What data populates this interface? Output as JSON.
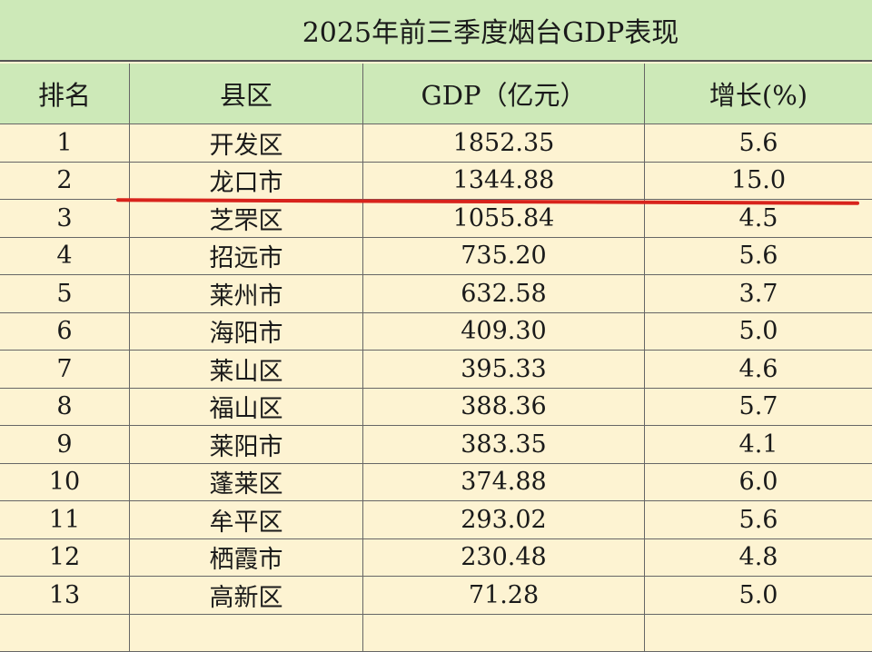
{
  "title": "2025年前三季度烟台GDP表现",
  "columns": [
    "排名",
    "县区",
    "GDP（亿元）",
    "增长(%)"
  ],
  "rows": [
    [
      "1",
      "开发区",
      "1852.35",
      "5.6"
    ],
    [
      "2",
      "龙口市",
      "1344.88",
      "15.0"
    ],
    [
      "3",
      "芝罘区",
      "1055.84",
      "4.5"
    ],
    [
      "4",
      "招远市",
      "735.20",
      "5.6"
    ],
    [
      "5",
      "莱州市",
      "632.58",
      "3.7"
    ],
    [
      "6",
      "海阳市",
      "409.30",
      "5.0"
    ],
    [
      "7",
      "莱山区",
      "395.33",
      "4.6"
    ],
    [
      "8",
      "福山区",
      "388.36",
      "5.7"
    ],
    [
      "9",
      "莱阳市",
      "383.35",
      "4.1"
    ],
    [
      "10",
      "蓬莱区",
      "374.88",
      "6.0"
    ],
    [
      "11",
      "牟平区",
      "293.02",
      "5.6"
    ],
    [
      "12",
      "栖霞市",
      "230.48",
      "4.8"
    ],
    [
      "13",
      "高新区",
      "71.28",
      "5.0"
    ]
  ],
  "highlight": {
    "row": "龙口市",
    "color": "#d8231c"
  },
  "colors": {
    "header_bg": "#cde9b8",
    "row_bg": "#fdf3d2"
  }
}
